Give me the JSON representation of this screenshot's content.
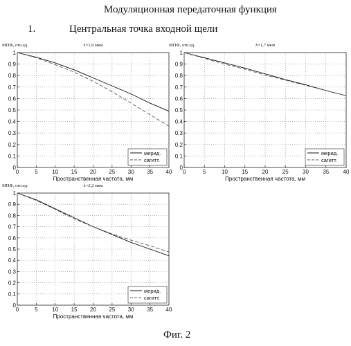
{
  "header": {
    "title": "Модуляционная передаточная функция",
    "section_number": "1.",
    "section_title": "Центральная точка входной щели"
  },
  "caption": "Фиг. 2",
  "chart_data": [
    {
      "type": "line",
      "title": "λ=1,0 мкм",
      "xlabel": "Пространственная частота, мм",
      "ylabel": "МПФ, отн.ед.",
      "xlim": [
        0,
        40
      ],
      "ylim": [
        0,
        1
      ],
      "xticks": [
        0,
        5,
        10,
        15,
        20,
        25,
        30,
        35,
        40
      ],
      "yticks": [
        0,
        0.1,
        0.2,
        0.3,
        0.4,
        0.5,
        0.6,
        0.7,
        0.8,
        0.9,
        1
      ],
      "grid": true,
      "legend": "bottom-right",
      "x": [
        0,
        5,
        10,
        15,
        20,
        25,
        30,
        35,
        40
      ],
      "series": [
        {
          "name": "мерид.",
          "style": "solid",
          "values": [
            1.0,
            0.96,
            0.91,
            0.85,
            0.78,
            0.71,
            0.64,
            0.56,
            0.49
          ]
        },
        {
          "name": "сагитт.",
          "style": "dashed",
          "values": [
            1.0,
            0.955,
            0.895,
            0.83,
            0.75,
            0.66,
            0.56,
            0.46,
            0.36
          ]
        }
      ]
    },
    {
      "type": "line",
      "title": "λ=1,7 мкм",
      "xlabel": "Пространственная частота, мм",
      "ylabel": "МПФ, отн.ед.",
      "xlim": [
        0,
        40
      ],
      "ylim": [
        0,
        1
      ],
      "xticks": [
        0,
        5,
        10,
        15,
        20,
        25,
        30,
        35,
        40
      ],
      "yticks": [
        0,
        0.1,
        0.2,
        0.3,
        0.4,
        0.5,
        0.6,
        0.7,
        0.8,
        0.9,
        1
      ],
      "grid": true,
      "legend": "bottom-right",
      "x": [
        0,
        5,
        10,
        15,
        20,
        25,
        30,
        35,
        40
      ],
      "series": [
        {
          "name": "мерид.",
          "style": "solid",
          "values": [
            1.0,
            0.955,
            0.91,
            0.865,
            0.815,
            0.765,
            0.72,
            0.67,
            0.625
          ]
        },
        {
          "name": "сагитт.",
          "style": "dashed",
          "values": [
            1.0,
            0.95,
            0.9,
            0.855,
            0.805,
            0.76,
            0.715,
            0.67,
            0.625
          ]
        }
      ]
    },
    {
      "type": "line",
      "title": "λ=2,2 мкм",
      "xlabel": "Пространственная частота, мм",
      "ylabel": "МПФ, отн.ед.",
      "xlim": [
        0,
        40
      ],
      "ylim": [
        0,
        1
      ],
      "xticks": [
        0,
        5,
        10,
        15,
        20,
        25,
        30,
        35,
        40
      ],
      "yticks": [
        0,
        0.1,
        0.2,
        0.3,
        0.4,
        0.5,
        0.6,
        0.7,
        0.8,
        0.9,
        1
      ],
      "grid": true,
      "legend": "bottom-right",
      "x": [
        0,
        5,
        10,
        15,
        20,
        25,
        30,
        35,
        40
      ],
      "series": [
        {
          "name": "мерид.",
          "style": "solid",
          "values": [
            1.0,
            0.94,
            0.86,
            0.78,
            0.7,
            0.63,
            0.56,
            0.5,
            0.44
          ]
        },
        {
          "name": "сагитт.",
          "style": "dashed",
          "values": [
            1.0,
            0.935,
            0.855,
            0.77,
            0.7,
            0.635,
            0.58,
            0.53,
            0.475
          ]
        }
      ]
    }
  ]
}
